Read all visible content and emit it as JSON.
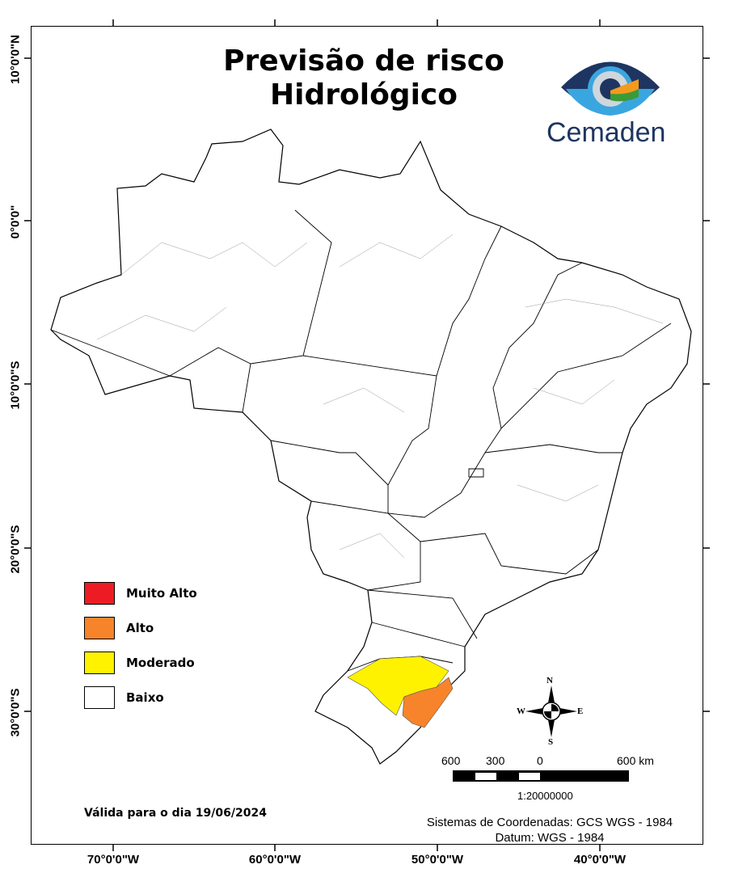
{
  "title": {
    "line1": "Previsão de risco",
    "line2": "Hidrológico"
  },
  "logo": {
    "text": "Cemaden",
    "colors": {
      "dark_blue": "#1e3561",
      "light_blue": "#3aa6e0",
      "orange": "#f39a1e",
      "green": "#3c9a37"
    }
  },
  "latitude_labels": [
    "10°0'0\"N",
    "0°0'0\"",
    "10°0'0\"S",
    "20°0'0\"S",
    "30°0'0\"S"
  ],
  "longitude_labels": [
    "70°0'0\"W",
    "60°0'0\"W",
    "50°0'0\"W",
    "40°0'0\"W"
  ],
  "legend": [
    {
      "label": "Muito Alto",
      "color": "#ed1c24"
    },
    {
      "label": "Alto",
      "color": "#f7842a"
    },
    {
      "label": "Moderado",
      "color": "#fff200"
    },
    {
      "label": "Baixo",
      "color": "#ffffff"
    }
  ],
  "risk_areas": [
    {
      "level": "Moderado",
      "region": "north/central Rio Grande do Sul"
    },
    {
      "level": "Alto",
      "region": "eastern Rio Grande do Sul"
    }
  ],
  "validity": "Válida para o dia 19/06/2024",
  "compass": {
    "n": "N",
    "s": "S",
    "e": "E",
    "w": "W"
  },
  "scale_bar": {
    "labels": [
      "600",
      "300",
      "0",
      "600 km"
    ],
    "ratio": "1:20000000"
  },
  "coordinate_system": {
    "line1": "Sistemas de Coordenadas: GCS WGS - 1984",
    "line2": "Datum: WGS - 1984"
  }
}
